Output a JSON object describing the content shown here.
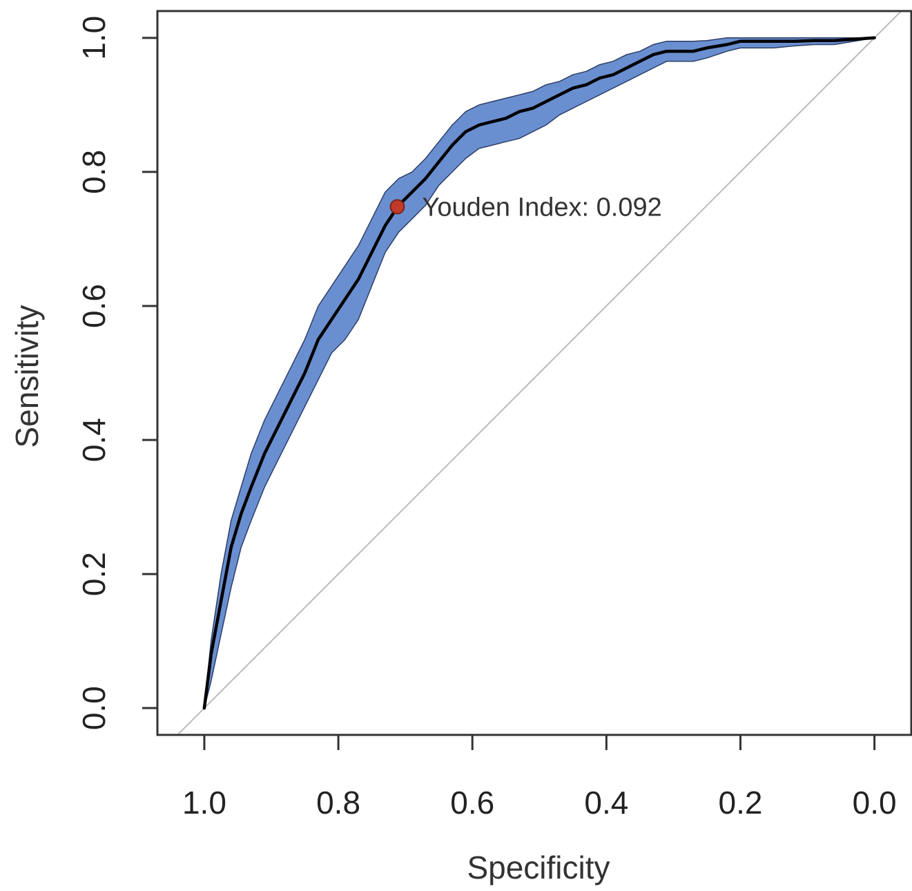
{
  "chart_data": {
    "type": "line",
    "xlabel": "Specificity",
    "ylabel": "Sensitivity",
    "xlim": [
      1.07,
      -0.055
    ],
    "ylim": [
      -0.04,
      1.04
    ],
    "x_reversed": true,
    "grid": false,
    "x_ticks": [
      {
        "value": 1.0,
        "label": "1.0"
      },
      {
        "value": 0.8,
        "label": "0.8"
      },
      {
        "value": 0.6,
        "label": "0.6"
      },
      {
        "value": 0.4,
        "label": "0.4"
      },
      {
        "value": 0.2,
        "label": "0.2"
      },
      {
        "value": 0.0,
        "label": "0.0"
      }
    ],
    "y_ticks": [
      {
        "value": 0.0,
        "label": "0.0"
      },
      {
        "value": 0.2,
        "label": "0.2"
      },
      {
        "value": 0.4,
        "label": "0.4"
      },
      {
        "value": 0.6,
        "label": "0.6"
      },
      {
        "value": 0.8,
        "label": "0.8"
      },
      {
        "value": 1.0,
        "label": "1.0"
      }
    ],
    "series": [
      {
        "role": "roc-curve",
        "color": "#000000",
        "points": [
          [
            1.0,
            0.0
          ],
          [
            0.99,
            0.08
          ],
          [
            0.975,
            0.16
          ],
          [
            0.96,
            0.24
          ],
          [
            0.945,
            0.29
          ],
          [
            0.93,
            0.33
          ],
          [
            0.91,
            0.38
          ],
          [
            0.89,
            0.42
          ],
          [
            0.87,
            0.46
          ],
          [
            0.85,
            0.5
          ],
          [
            0.83,
            0.55
          ],
          [
            0.81,
            0.58
          ],
          [
            0.79,
            0.61
          ],
          [
            0.77,
            0.64
          ],
          [
            0.75,
            0.68
          ],
          [
            0.73,
            0.72
          ],
          [
            0.71,
            0.75
          ],
          [
            0.69,
            0.77
          ],
          [
            0.67,
            0.79
          ],
          [
            0.65,
            0.815
          ],
          [
            0.63,
            0.84
          ],
          [
            0.61,
            0.86
          ],
          [
            0.59,
            0.87
          ],
          [
            0.57,
            0.875
          ],
          [
            0.55,
            0.88
          ],
          [
            0.53,
            0.89
          ],
          [
            0.51,
            0.895
          ],
          [
            0.49,
            0.905
          ],
          [
            0.47,
            0.915
          ],
          [
            0.45,
            0.925
          ],
          [
            0.43,
            0.93
          ],
          [
            0.41,
            0.94
          ],
          [
            0.39,
            0.945
          ],
          [
            0.37,
            0.955
          ],
          [
            0.35,
            0.965
          ],
          [
            0.33,
            0.975
          ],
          [
            0.31,
            0.98
          ],
          [
            0.29,
            0.98
          ],
          [
            0.27,
            0.98
          ],
          [
            0.25,
            0.985
          ],
          [
            0.22,
            0.99
          ],
          [
            0.2,
            0.995
          ],
          [
            0.18,
            0.995
          ],
          [
            0.15,
            0.995
          ],
          [
            0.12,
            0.995
          ],
          [
            0.09,
            0.996
          ],
          [
            0.06,
            0.996
          ],
          [
            0.03,
            0.998
          ],
          [
            0.0,
            1.0
          ]
        ]
      },
      {
        "role": "confidence-band",
        "color": "#6a8fd0",
        "upper": [
          [
            1.0,
            0.0
          ],
          [
            0.99,
            0.1
          ],
          [
            0.975,
            0.2
          ],
          [
            0.96,
            0.28
          ],
          [
            0.945,
            0.33
          ],
          [
            0.93,
            0.38
          ],
          [
            0.91,
            0.43
          ],
          [
            0.89,
            0.47
          ],
          [
            0.87,
            0.51
          ],
          [
            0.85,
            0.55
          ],
          [
            0.83,
            0.6
          ],
          [
            0.81,
            0.63
          ],
          [
            0.79,
            0.66
          ],
          [
            0.77,
            0.69
          ],
          [
            0.75,
            0.73
          ],
          [
            0.73,
            0.77
          ],
          [
            0.71,
            0.79
          ],
          [
            0.69,
            0.8
          ],
          [
            0.67,
            0.82
          ],
          [
            0.65,
            0.845
          ],
          [
            0.63,
            0.87
          ],
          [
            0.61,
            0.89
          ],
          [
            0.59,
            0.9
          ],
          [
            0.57,
            0.905
          ],
          [
            0.55,
            0.91
          ],
          [
            0.53,
            0.915
          ],
          [
            0.51,
            0.92
          ],
          [
            0.49,
            0.93
          ],
          [
            0.47,
            0.935
          ],
          [
            0.45,
            0.945
          ],
          [
            0.43,
            0.95
          ],
          [
            0.41,
            0.96
          ],
          [
            0.39,
            0.965
          ],
          [
            0.37,
            0.975
          ],
          [
            0.35,
            0.98
          ],
          [
            0.33,
            0.99
          ],
          [
            0.31,
            0.995
          ],
          [
            0.29,
            0.995
          ],
          [
            0.27,
            0.995
          ],
          [
            0.25,
            0.996
          ],
          [
            0.22,
            1.0
          ],
          [
            0.2,
            1.0
          ],
          [
            0.15,
            1.0
          ],
          [
            0.1,
            1.0
          ],
          [
            0.05,
            1.0
          ],
          [
            0.0,
            1.0
          ]
        ],
        "lower": [
          [
            1.0,
            0.0
          ],
          [
            0.99,
            0.04
          ],
          [
            0.975,
            0.11
          ],
          [
            0.96,
            0.18
          ],
          [
            0.945,
            0.24
          ],
          [
            0.93,
            0.28
          ],
          [
            0.91,
            0.33
          ],
          [
            0.89,
            0.37
          ],
          [
            0.87,
            0.41
          ],
          [
            0.85,
            0.45
          ],
          [
            0.83,
            0.49
          ],
          [
            0.81,
            0.53
          ],
          [
            0.79,
            0.55
          ],
          [
            0.77,
            0.58
          ],
          [
            0.75,
            0.63
          ],
          [
            0.73,
            0.68
          ],
          [
            0.71,
            0.71
          ],
          [
            0.69,
            0.73
          ],
          [
            0.67,
            0.75
          ],
          [
            0.65,
            0.78
          ],
          [
            0.63,
            0.8
          ],
          [
            0.61,
            0.82
          ],
          [
            0.59,
            0.835
          ],
          [
            0.57,
            0.84
          ],
          [
            0.55,
            0.845
          ],
          [
            0.53,
            0.85
          ],
          [
            0.51,
            0.86
          ],
          [
            0.49,
            0.87
          ],
          [
            0.47,
            0.885
          ],
          [
            0.45,
            0.895
          ],
          [
            0.43,
            0.905
          ],
          [
            0.41,
            0.915
          ],
          [
            0.39,
            0.925
          ],
          [
            0.37,
            0.935
          ],
          [
            0.35,
            0.945
          ],
          [
            0.33,
            0.955
          ],
          [
            0.31,
            0.965
          ],
          [
            0.29,
            0.965
          ],
          [
            0.27,
            0.965
          ],
          [
            0.25,
            0.97
          ],
          [
            0.22,
            0.98
          ],
          [
            0.2,
            0.985
          ],
          [
            0.18,
            0.985
          ],
          [
            0.15,
            0.985
          ],
          [
            0.12,
            0.988
          ],
          [
            0.09,
            0.99
          ],
          [
            0.06,
            0.99
          ],
          [
            0.03,
            0.995
          ],
          [
            0.0,
            1.0
          ]
        ]
      },
      {
        "role": "reference-diagonal",
        "color": "#bbbbbb",
        "points": [
          [
            1.0,
            0.0
          ],
          [
            0.0,
            1.0
          ]
        ]
      }
    ],
    "highlight_point": {
      "x": 0.712,
      "y": 0.748,
      "color": "#c0392b",
      "label": "Youden Index: 0.092"
    }
  }
}
